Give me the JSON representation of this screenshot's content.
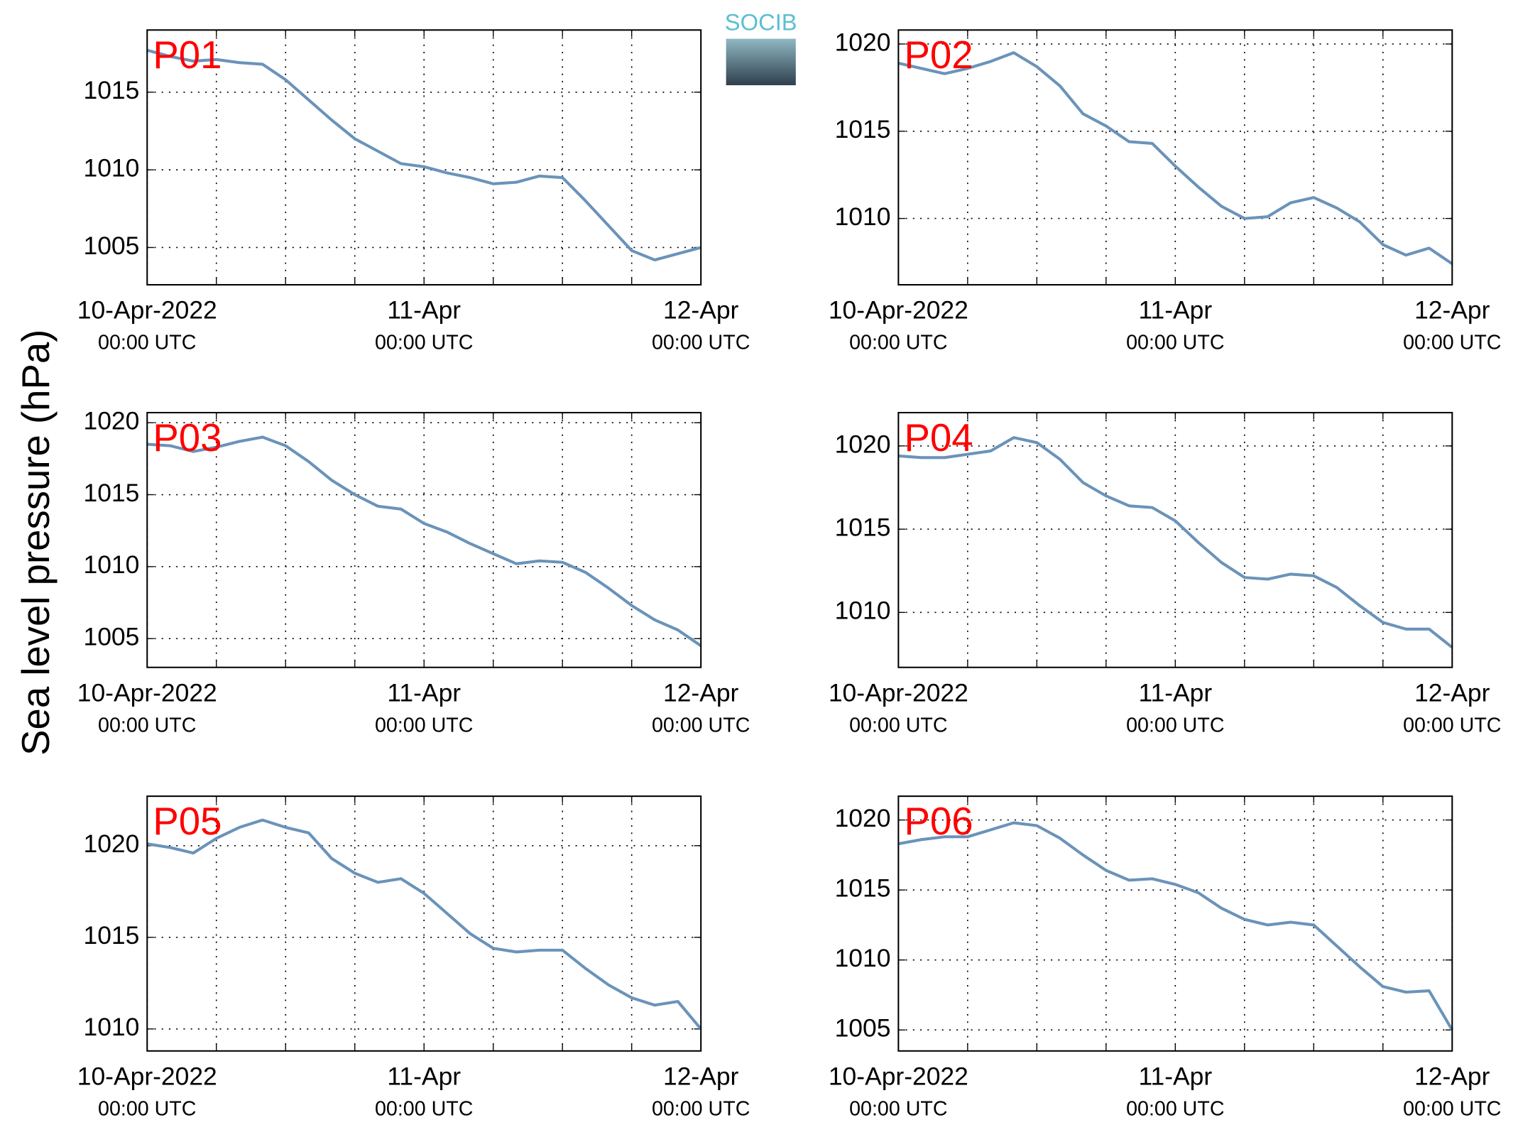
{
  "ylabel": "Sea level pressure (hPa)",
  "logo": "SOCIB",
  "chart_data": [
    {
      "type": "line",
      "title": "P01",
      "x": [
        0,
        2,
        4,
        6,
        8,
        10,
        12,
        14,
        16,
        18,
        20,
        22,
        24,
        26,
        28,
        30,
        32,
        34,
        36,
        38,
        40,
        42,
        44,
        46,
        48
      ],
      "series": [
        {
          "color": "#6a93b9",
          "values": [
            1017.7,
            1017.3,
            1017.0,
            1017.1,
            1016.9,
            1016.8,
            1015.8,
            1014.5,
            1013.2,
            1012.0,
            1011.2,
            1010.4,
            1010.2,
            1009.8,
            1009.5,
            1009.1,
            1009.2,
            1009.6,
            1009.5,
            1008.0,
            1006.4,
            1004.8,
            1004.2,
            1004.6,
            1005.0
          ]
        }
      ],
      "xlim": [
        0,
        48
      ],
      "ylim": [
        1002.6,
        1019
      ],
      "yticks": [
        1005,
        1010,
        1015
      ],
      "grid": true,
      "xticks": [
        {
          "value": 0,
          "label": [
            "10-Apr-2022",
            "00:00 UTC"
          ]
        },
        {
          "value": 6,
          "label": null
        },
        {
          "value": 12,
          "label": null
        },
        {
          "value": 18,
          "label": null
        },
        {
          "value": 24,
          "label": [
            "11-Apr",
            "00:00 UTC"
          ]
        },
        {
          "value": 30,
          "label": null
        },
        {
          "value": 36,
          "label": null
        },
        {
          "value": 42,
          "label": null
        },
        {
          "value": 48,
          "label": [
            "12-Apr",
            "00:00 UTC"
          ]
        }
      ]
    },
    {
      "type": "line",
      "title": "P02",
      "x": [
        0,
        2,
        4,
        6,
        8,
        10,
        12,
        14,
        16,
        18,
        20,
        22,
        24,
        26,
        28,
        30,
        32,
        34,
        36,
        38,
        40,
        42,
        44,
        46,
        48
      ],
      "series": [
        {
          "color": "#6a93b9",
          "values": [
            1018.9,
            1018.6,
            1018.3,
            1018.6,
            1019.0,
            1019.5,
            1018.7,
            1017.6,
            1016.0,
            1015.3,
            1014.4,
            1014.3,
            1013.0,
            1011.8,
            1010.7,
            1010.0,
            1010.1,
            1010.9,
            1011.2,
            1010.6,
            1009.8,
            1008.5,
            1007.9,
            1008.3,
            1007.4
          ]
        }
      ],
      "xlim": [
        0,
        48
      ],
      "ylim": [
        1006.2,
        1020.8
      ],
      "yticks": [
        1010,
        1015,
        1020
      ],
      "grid": true,
      "xticks": [
        {
          "value": 0,
          "label": [
            "10-Apr-2022",
            "00:00 UTC"
          ]
        },
        {
          "value": 6,
          "label": null
        },
        {
          "value": 12,
          "label": null
        },
        {
          "value": 18,
          "label": null
        },
        {
          "value": 24,
          "label": [
            "11-Apr",
            "00:00 UTC"
          ]
        },
        {
          "value": 30,
          "label": null
        },
        {
          "value": 36,
          "label": null
        },
        {
          "value": 42,
          "label": null
        },
        {
          "value": 48,
          "label": [
            "12-Apr",
            "00:00 UTC"
          ]
        }
      ]
    },
    {
      "type": "line",
      "title": "P03",
      "x": [
        0,
        2,
        4,
        6,
        8,
        10,
        12,
        14,
        16,
        18,
        20,
        22,
        24,
        26,
        28,
        30,
        32,
        34,
        36,
        38,
        40,
        42,
        44,
        46,
        48
      ],
      "series": [
        {
          "color": "#6a93b9",
          "values": [
            1018.5,
            1018.4,
            1018.0,
            1018.3,
            1018.7,
            1019.0,
            1018.4,
            1017.3,
            1016.0,
            1015.0,
            1014.2,
            1014.0,
            1013.0,
            1012.4,
            1011.6,
            1010.9,
            1010.2,
            1010.4,
            1010.3,
            1009.6,
            1008.5,
            1007.3,
            1006.3,
            1005.6,
            1004.5
          ]
        }
      ],
      "xlim": [
        0,
        48
      ],
      "ylim": [
        1003.0,
        1020.7
      ],
      "yticks": [
        1005,
        1010,
        1015,
        1020
      ],
      "grid": true,
      "xticks": [
        {
          "value": 0,
          "label": [
            "10-Apr-2022",
            "00:00 UTC"
          ]
        },
        {
          "value": 6,
          "label": null
        },
        {
          "value": 12,
          "label": null
        },
        {
          "value": 18,
          "label": null
        },
        {
          "value": 24,
          "label": [
            "11-Apr",
            "00:00 UTC"
          ]
        },
        {
          "value": 30,
          "label": null
        },
        {
          "value": 36,
          "label": null
        },
        {
          "value": 42,
          "label": null
        },
        {
          "value": 48,
          "label": [
            "12-Apr",
            "00:00 UTC"
          ]
        }
      ]
    },
    {
      "type": "line",
      "title": "P04",
      "x": [
        0,
        2,
        4,
        6,
        8,
        10,
        12,
        14,
        16,
        18,
        20,
        22,
        24,
        26,
        28,
        30,
        32,
        34,
        36,
        38,
        40,
        42,
        44,
        46,
        48
      ],
      "series": [
        {
          "color": "#6a93b9",
          "values": [
            1019.4,
            1019.3,
            1019.3,
            1019.5,
            1019.7,
            1020.5,
            1020.2,
            1019.2,
            1017.8,
            1017.0,
            1016.4,
            1016.3,
            1015.5,
            1014.2,
            1013.0,
            1012.1,
            1012.0,
            1012.3,
            1012.2,
            1011.5,
            1010.4,
            1009.4,
            1009.0,
            1009.0,
            1007.9
          ]
        }
      ],
      "xlim": [
        0,
        48
      ],
      "ylim": [
        1006.7,
        1022.0
      ],
      "yticks": [
        1010,
        1015,
        1020
      ],
      "grid": true,
      "xticks": [
        {
          "value": 0,
          "label": [
            "10-Apr-2022",
            "00:00 UTC"
          ]
        },
        {
          "value": 6,
          "label": null
        },
        {
          "value": 12,
          "label": null
        },
        {
          "value": 18,
          "label": null
        },
        {
          "value": 24,
          "label": [
            "11-Apr",
            "00:00 UTC"
          ]
        },
        {
          "value": 30,
          "label": null
        },
        {
          "value": 36,
          "label": null
        },
        {
          "value": 42,
          "label": null
        },
        {
          "value": 48,
          "label": [
            "12-Apr",
            "00:00 UTC"
          ]
        }
      ]
    },
    {
      "type": "line",
      "title": "P05",
      "x": [
        0,
        2,
        4,
        6,
        8,
        10,
        12,
        14,
        16,
        18,
        20,
        22,
        24,
        26,
        28,
        30,
        32,
        34,
        36,
        38,
        40,
        42,
        44,
        46,
        48
      ],
      "series": [
        {
          "color": "#6a93b9",
          "values": [
            1020.1,
            1019.9,
            1019.6,
            1020.4,
            1021.0,
            1021.4,
            1021.0,
            1020.7,
            1019.3,
            1018.5,
            1018.0,
            1018.2,
            1017.4,
            1016.3,
            1015.2,
            1014.4,
            1014.2,
            1014.3,
            1014.3,
            1013.3,
            1012.4,
            1011.7,
            1011.3,
            1011.5,
            1010.0
          ]
        }
      ],
      "xlim": [
        0,
        48
      ],
      "ylim": [
        1008.8,
        1022.7
      ],
      "yticks": [
        1010,
        1015,
        1020
      ],
      "grid": true,
      "xticks": [
        {
          "value": 0,
          "label": [
            "10-Apr-2022",
            "00:00 UTC"
          ]
        },
        {
          "value": 6,
          "label": null
        },
        {
          "value": 12,
          "label": null
        },
        {
          "value": 18,
          "label": null
        },
        {
          "value": 24,
          "label": [
            "11-Apr",
            "00:00 UTC"
          ]
        },
        {
          "value": 30,
          "label": null
        },
        {
          "value": 36,
          "label": null
        },
        {
          "value": 42,
          "label": null
        },
        {
          "value": 48,
          "label": [
            "12-Apr",
            "00:00 UTC"
          ]
        }
      ]
    },
    {
      "type": "line",
      "title": "P06",
      "x": [
        0,
        2,
        4,
        6,
        8,
        10,
        12,
        14,
        16,
        18,
        20,
        22,
        24,
        26,
        28,
        30,
        32,
        34,
        36,
        38,
        40,
        42,
        44,
        46,
        48
      ],
      "series": [
        {
          "color": "#6a93b9",
          "values": [
            1018.3,
            1018.6,
            1018.8,
            1018.8,
            1019.3,
            1019.8,
            1019.6,
            1018.7,
            1017.5,
            1016.4,
            1015.7,
            1015.8,
            1015.4,
            1014.8,
            1013.7,
            1012.9,
            1012.5,
            1012.7,
            1012.5,
            1011.0,
            1009.5,
            1008.1,
            1007.7,
            1007.8,
            1005.0
          ]
        }
      ],
      "xlim": [
        0,
        48
      ],
      "ylim": [
        1003.5,
        1021.7
      ],
      "yticks": [
        1005,
        1010,
        1015,
        1020
      ],
      "grid": true,
      "xticks": [
        {
          "value": 0,
          "label": [
            "10-Apr-2022",
            "00:00 UTC"
          ]
        },
        {
          "value": 6,
          "label": null
        },
        {
          "value": 12,
          "label": null
        },
        {
          "value": 18,
          "label": null
        },
        {
          "value": 24,
          "label": [
            "11-Apr",
            "00:00 UTC"
          ]
        },
        {
          "value": 30,
          "label": null
        },
        {
          "value": 36,
          "label": null
        },
        {
          "value": 42,
          "label": null
        },
        {
          "value": 48,
          "label": [
            "12-Apr",
            "00:00 UTC"
          ]
        }
      ]
    }
  ]
}
